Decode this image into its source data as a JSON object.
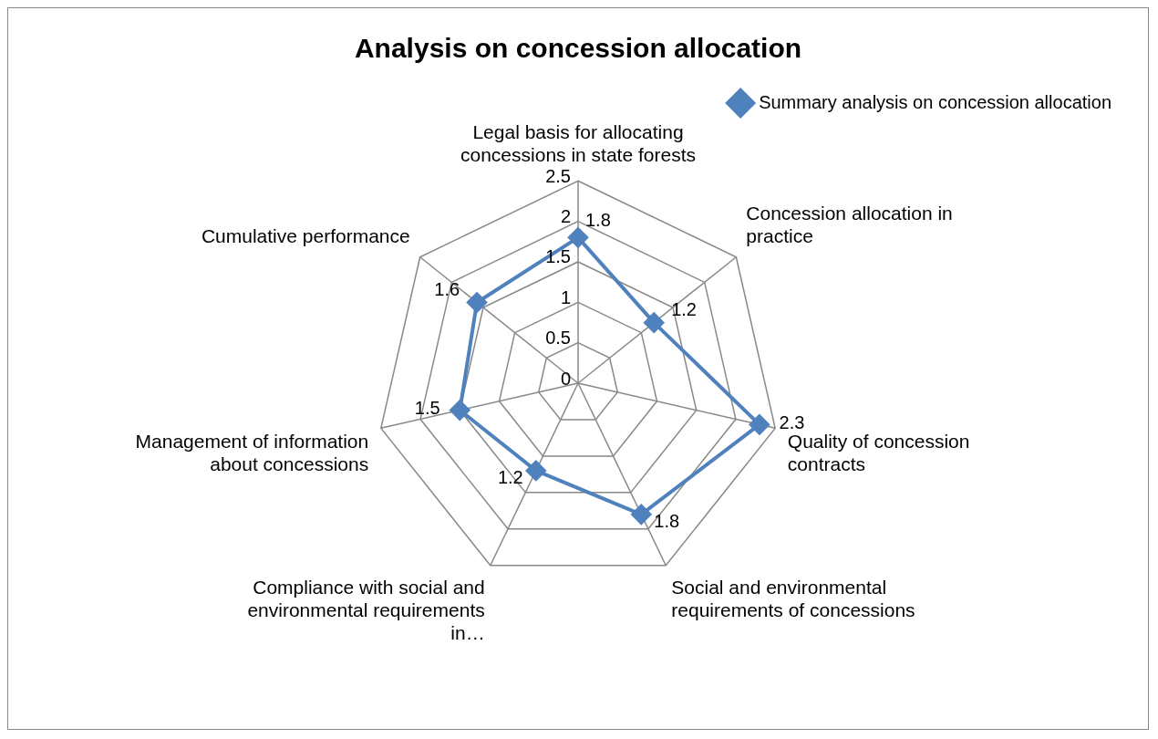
{
  "chart_data": {
    "type": "radar",
    "title": "Analysis on concession allocation",
    "categories": [
      "Legal basis for allocating concessions in state forests",
      "Concession allocation in practice",
      "Quality of concession contracts",
      "Social and environmental requirements of concessions",
      "Compliance with social and environmental requirements in…",
      "Management of information about concessions",
      "Cumulative performance"
    ],
    "series": [
      {
        "name": "Summary analysis on concession allocation",
        "color": "#4f81bd",
        "values": [
          1.8,
          1.2,
          2.3,
          1.8,
          1.2,
          1.5,
          1.6
        ]
      }
    ],
    "ylim": [
      0,
      2.5
    ],
    "yticks": [
      0,
      0.5,
      1,
      1.5,
      2,
      2.5
    ],
    "grid": true,
    "legend": "top right",
    "marker": "diamond",
    "line_style": "solid",
    "data_labels": true
  }
}
